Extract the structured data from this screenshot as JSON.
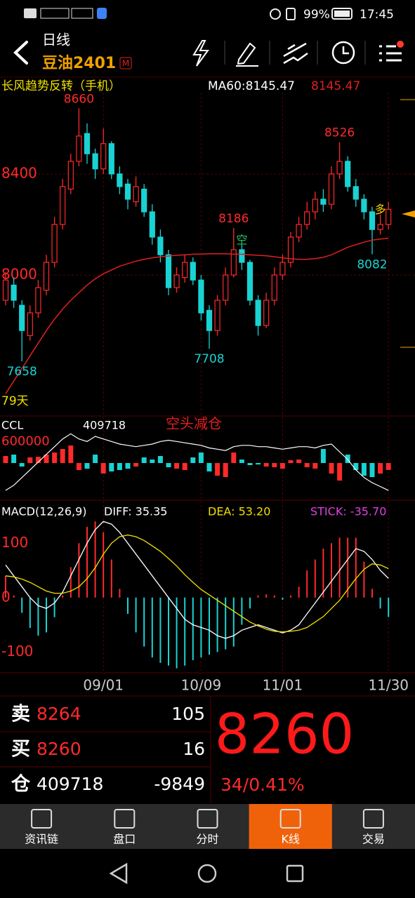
{
  "status_bar": {
    "battery": "99%",
    "time": "17:45"
  },
  "header": {
    "period": "日线",
    "symbol": "豆油2401",
    "badge": "M"
  },
  "chart_data": {
    "type": "candlestick",
    "title": "长风趋势反转（手机）",
    "candles": [
      [
        7900,
        8010,
        7880,
        7980
      ],
      [
        7960,
        7990,
        7870,
        7900
      ],
      [
        7880,
        7900,
        7658,
        7780
      ],
      [
        7760,
        7880,
        7740,
        7850
      ],
      [
        7850,
        7980,
        7830,
        7950
      ],
      [
        7940,
        8080,
        7920,
        8050
      ],
      [
        8050,
        8230,
        8030,
        8200
      ],
      [
        8200,
        8380,
        8180,
        8350
      ],
      [
        8340,
        8480,
        8320,
        8450
      ],
      [
        8450,
        8660,
        8430,
        8550
      ],
      [
        8560,
        8600,
        8440,
        8480
      ],
      [
        8480,
        8500,
        8380,
        8420
      ],
      [
        8420,
        8580,
        8400,
        8520
      ],
      [
        8520,
        8530,
        8380,
        8400
      ],
      [
        8400,
        8430,
        8320,
        8350
      ],
      [
        8360,
        8380,
        8260,
        8300
      ],
      [
        8290,
        8390,
        8270,
        8350
      ],
      [
        8340,
        8360,
        8230,
        8250
      ],
      [
        8250,
        8280,
        8120,
        8150
      ],
      [
        8150,
        8180,
        8050,
        8080
      ],
      [
        8080,
        8100,
        7920,
        7950
      ],
      [
        7950,
        8030,
        7930,
        8000
      ],
      [
        7990,
        8080,
        7970,
        8050
      ],
      [
        8050,
        8070,
        7960,
        7980
      ],
      [
        7980,
        8000,
        7820,
        7850
      ],
      [
        7860,
        7880,
        7708,
        7780
      ],
      [
        7780,
        7920,
        7760,
        7900
      ],
      [
        7900,
        8030,
        7880,
        8000
      ],
      [
        8000,
        8186,
        7990,
        8100
      ],
      [
        8100,
        8120,
        8020,
        8050
      ],
      [
        8050,
        8060,
        7880,
        7900
      ],
      [
        7900,
        7920,
        7760,
        7800
      ],
      [
        7800,
        7930,
        7790,
        7900
      ],
      [
        7900,
        8030,
        7880,
        8000
      ],
      [
        8000,
        8080,
        7980,
        8050
      ],
      [
        8050,
        8170,
        8030,
        8150
      ],
      [
        8150,
        8230,
        8130,
        8200
      ],
      [
        8200,
        8290,
        8180,
        8250
      ],
      [
        8250,
        8330,
        8220,
        8300
      ],
      [
        8300,
        8340,
        8250,
        8280
      ],
      [
        8280,
        8430,
        8260,
        8400
      ],
      [
        8400,
        8526,
        8380,
        8450
      ],
      [
        8450,
        8470,
        8330,
        8350
      ],
      [
        8350,
        8380,
        8270,
        8300
      ],
      [
        8300,
        8320,
        8220,
        8250
      ],
      [
        8250,
        8270,
        8082,
        8180
      ],
      [
        8180,
        8240,
        8160,
        8200
      ],
      [
        8200,
        8290,
        8180,
        8260
      ]
    ],
    "ylim": [
      7450,
      8722
    ],
    "yticks": [
      8400,
      8000
    ],
    "grid": true,
    "up_color": "#ff2a2a",
    "down_color": "#19d3d3",
    "marked_highs": [
      9,
      28,
      41
    ],
    "marked_lows": [
      2,
      25,
      45
    ],
    "signals": [
      {
        "candle": 29,
        "text": "空",
        "color": "#22c55e"
      },
      {
        "candle": 46,
        "text": "多",
        "color": "#f5d000"
      }
    ],
    "days_label": "79天",
    "dates": [
      {
        "candle": 12,
        "label": "09/01"
      },
      {
        "candle": 24,
        "label": "10/09"
      },
      {
        "candle": 34,
        "label": "11/01"
      },
      {
        "candle": 47,
        "label": "11/30"
      }
    ],
    "ma": {
      "legend": "MA60:8145.47",
      "value_label": "8145.47",
      "color": "#e02020",
      "values": [
        7530,
        7580,
        7630,
        7680,
        7730,
        7780,
        7825,
        7865,
        7900,
        7930,
        7960,
        7985,
        8005,
        8020,
        8035,
        8045,
        8055,
        8062,
        8068,
        8072,
        8075,
        8078,
        8080,
        8082,
        8083,
        8084,
        8084,
        8084,
        8083,
        8082,
        8080,
        8078,
        8076,
        8072,
        8068,
        8064,
        8062,
        8062,
        8065,
        8070,
        8080,
        8095,
        8110,
        8120,
        8130,
        8138,
        8142,
        8145.47
      ]
    },
    "ccl": {
      "name": "CCL",
      "value_label": "409718",
      "note": "空头减仓",
      "ylim": [
        380000,
        680000
      ],
      "yticks": [
        600000
      ],
      "change_lim": [
        -50000,
        60000
      ],
      "values": [
        410000,
        430000,
        460000,
        490000,
        520000,
        550000,
        580000,
        610000,
        630000,
        610000,
        600000,
        620000,
        610000,
        600000,
        590000,
        585000,
        580000,
        585000,
        590000,
        600000,
        605000,
        600000,
        595000,
        590000,
        585000,
        575000,
        570000,
        565000,
        580000,
        585000,
        585000,
        580000,
        580000,
        575000,
        570000,
        575000,
        580000,
        580000,
        575000,
        585000,
        590000,
        560000,
        530000,
        490000,
        460000,
        440000,
        425000,
        409718
      ],
      "change": [
        10000,
        12000,
        -5000,
        8000,
        9000,
        12000,
        15000,
        20000,
        25000,
        -10000,
        -8000,
        12000,
        -15000,
        -12000,
        -10000,
        -8000,
        -5000,
        8000,
        5000,
        10000,
        -6000,
        -8000,
        -10000,
        8000,
        15000,
        -12000,
        -18000,
        -20000,
        15000,
        5000,
        -3000,
        -2000,
        -5000,
        -6000,
        -8000,
        4000,
        5000,
        -6000,
        -8000,
        20000,
        -15000,
        -25000,
        12000,
        -10000,
        -18000,
        -20000,
        -15000,
        -9849
      ]
    },
    "macd": {
      "name": "MACD(12,26,9)",
      "diff_label": "DIFF: 35.35",
      "dea_label": "DEA: 53.20",
      "stick_label": "STICK: -35.70",
      "ylim": [
        -137,
        170
      ],
      "yticks": [
        100,
        0,
        -100
      ],
      "diff": [
        60,
        40,
        20,
        0,
        -15,
        -20,
        -10,
        10,
        40,
        70,
        100,
        125,
        140,
        135,
        120,
        100,
        80,
        60,
        40,
        20,
        0,
        -20,
        -40,
        -50,
        -55,
        -60,
        -70,
        -75,
        -70,
        -60,
        -55,
        -50,
        -55,
        -60,
        -65,
        -60,
        -50,
        -30,
        -10,
        10,
        30,
        50,
        70,
        90,
        85,
        70,
        50,
        35.35
      ],
      "dea": [
        40,
        38,
        34,
        28,
        20,
        12,
        8,
        8,
        12,
        20,
        35,
        55,
        80,
        100,
        112,
        115,
        112,
        105,
        95,
        85,
        72,
        58,
        42,
        28,
        15,
        5,
        -5,
        -15,
        -25,
        -35,
        -45,
        -52,
        -58,
        -62,
        -63,
        -62,
        -60,
        -55,
        -45,
        -35,
        -20,
        -5,
        15,
        35,
        52,
        62,
        60,
        53.2
      ],
      "stick": [
        40,
        4,
        -28,
        -56,
        -70,
        -64,
        -36,
        4,
        56,
        100,
        130,
        140,
        120,
        70,
        16,
        -30,
        -64,
        -90,
        -110,
        -120,
        -125,
        -130,
        -125,
        -115,
        -110,
        -105,
        -100,
        -95,
        -90,
        -50,
        -20,
        4,
        6,
        4,
        -4,
        4,
        20,
        50,
        70,
        90,
        100,
        110,
        110,
        110,
        66,
        16,
        -20,
        -35.7
      ]
    }
  },
  "quote": {
    "rows": [
      {
        "side": "卖",
        "price": "8264",
        "volume": "105"
      },
      {
        "side": "买",
        "price": "8260",
        "volume": "16"
      },
      {
        "side": "仓",
        "price": "409718",
        "volume": "-9849"
      }
    ],
    "last": "8260",
    "change": "34/0.41%"
  },
  "tabs": [
    {
      "label": "资讯链"
    },
    {
      "label": "盘口"
    },
    {
      "label": "分时"
    },
    {
      "label": "K线"
    },
    {
      "label": "交易"
    }
  ],
  "active_tab": 3
}
